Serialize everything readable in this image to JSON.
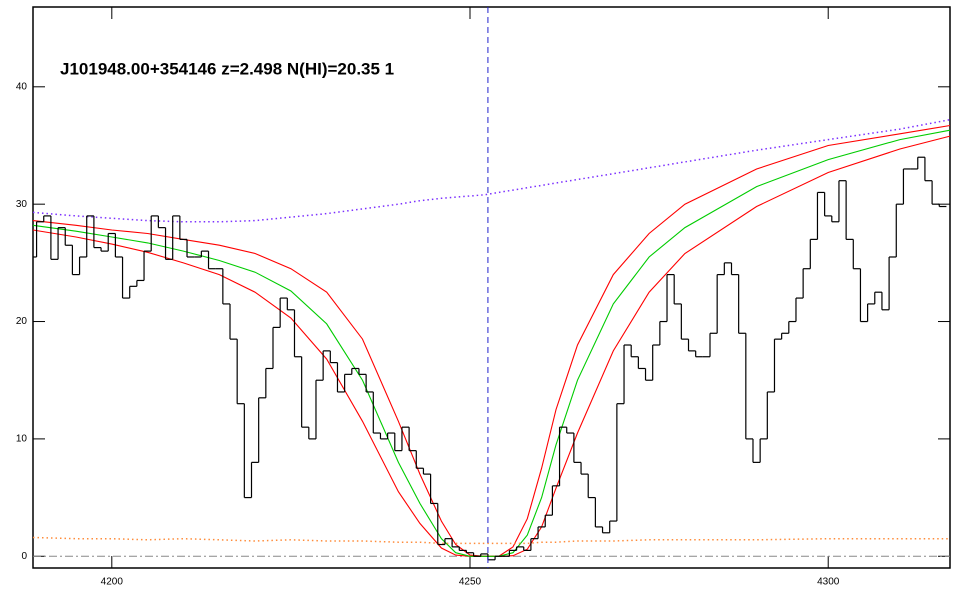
{
  "chart_data": {
    "type": "spectrum",
    "title": "J101948.00+354146 z=2.498 N(HI)=20.35 1",
    "xlim": [
      4189,
      4317
    ],
    "ylim": [
      -1,
      46.8
    ],
    "xticks": [
      4200,
      4250,
      4300
    ],
    "yticks": [
      0,
      10,
      20,
      30,
      40
    ],
    "marker_x": 4252.5,
    "hline": 0,
    "flux": {
      "color": "#000000",
      "x": [
        4189,
        4190,
        4191,
        4192,
        4193,
        4194,
        4195,
        4196,
        4197,
        4198,
        4199,
        4200,
        4201,
        4202,
        4203,
        4204,
        4205,
        4206,
        4207,
        4208,
        4209,
        4210,
        4211,
        4212,
        4213,
        4214,
        4215,
        4216,
        4217,
        4218,
        4219,
        4220,
        4221,
        4222,
        4223,
        4224,
        4225,
        4226,
        4227,
        4228,
        4229,
        4230,
        4231,
        4232,
        4233,
        4234,
        4235,
        4236,
        4237,
        4238,
        4239,
        4240,
        4241,
        4242,
        4243,
        4244,
        4245,
        4246,
        4247,
        4248,
        4249,
        4250,
        4251,
        4252,
        4253,
        4254,
        4255,
        4256,
        4257,
        4258,
        4259,
        4260,
        4261,
        4262,
        4263,
        4264,
        4265,
        4266,
        4267,
        4268,
        4269,
        4270,
        4271,
        4272,
        4273,
        4274,
        4275,
        4276,
        4277,
        4278,
        4279,
        4280,
        4281,
        4282,
        4283,
        4284,
        4285,
        4286,
        4287,
        4288,
        4289,
        4290,
        4291,
        4292,
        4293,
        4294,
        4295,
        4296,
        4297,
        4298,
        4299,
        4300,
        4301,
        4302,
        4303,
        4304,
        4305,
        4306,
        4307,
        4308,
        4309,
        4310,
        4311,
        4312,
        4313,
        4314,
        4315,
        4316
      ],
      "values": [
        25.5,
        28.5,
        29,
        25.3,
        28,
        26.5,
        24,
        25.5,
        29,
        26.3,
        26,
        27.5,
        25.5,
        22,
        23,
        23.5,
        26,
        29,
        28,
        25.3,
        29,
        27,
        25.5,
        25.5,
        26,
        24.5,
        24.5,
        21.5,
        18.5,
        13,
        5,
        8,
        13.5,
        16,
        19.5,
        22,
        21,
        17,
        11,
        10,
        15,
        17.5,
        16.5,
        14,
        15.5,
        16,
        15.5,
        14,
        10.5,
        10,
        10.5,
        9,
        11,
        9,
        7.5,
        7,
        4.5,
        1,
        1.5,
        0.8,
        0.5,
        0.3,
        0,
        0.2,
        -0.3,
        0,
        0,
        0.5,
        0.8,
        0.5,
        1.5,
        2.5,
        3.5,
        6,
        11,
        10.5,
        8,
        7,
        5,
        2.5,
        2,
        3,
        13,
        18,
        17,
        16,
        15,
        18,
        20,
        24,
        21.5,
        18.5,
        17.5,
        17,
        17,
        19,
        24,
        25,
        24,
        19,
        10,
        8,
        10,
        14,
        18.5,
        19,
        20,
        22,
        24.5,
        27,
        31,
        29,
        28.5,
        32,
        27,
        24.5,
        20,
        21.5,
        22.5,
        21,
        25.5,
        30,
        33,
        33,
        34,
        32,
        30,
        29.8
      ]
    },
    "model_x": [
      4189,
      4195,
      4200,
      4205,
      4210,
      4215,
      4220,
      4225,
      4230,
      4235,
      4240,
      4243,
      4246,
      4248,
      4250,
      4252,
      4254,
      4256,
      4258,
      4260,
      4262,
      4265,
      4270,
      4275,
      4280,
      4290,
      4300,
      4310,
      4317
    ],
    "series": [
      {
        "color": "#ff0000",
        "style": "solid",
        "values": [
          28.6,
          28.2,
          27.8,
          27.5,
          27,
          26.5,
          25.8,
          24.5,
          22.5,
          18.5,
          11.5,
          7,
          3,
          1,
          0.1,
          0,
          0,
          0.8,
          3.2,
          7.5,
          12.5,
          18,
          24,
          27.5,
          30,
          33,
          35,
          36,
          36.7
        ]
      },
      {
        "color": "#ff0000",
        "style": "solid",
        "values": [
          27.8,
          27.2,
          26.6,
          25.9,
          25,
          24,
          22.5,
          20.3,
          16.8,
          11.5,
          5.5,
          2.8,
          0.7,
          0.1,
          0,
          0,
          0,
          0.05,
          0.6,
          2.5,
          5.8,
          10.5,
          17.5,
          22.5,
          25.8,
          29.8,
          32.7,
          34.7,
          35.8
        ]
      },
      {
        "color": "#00cc00",
        "style": "solid",
        "values": [
          28.2,
          27.7,
          27.2,
          26.7,
          26,
          25.2,
          24.2,
          22.6,
          19.8,
          15,
          8,
          4.5,
          1.5,
          0.3,
          0,
          0,
          0,
          0.3,
          1.8,
          5,
          9.5,
          15,
          21.5,
          25.5,
          28,
          31.5,
          33.8,
          35.5,
          36.3
        ]
      },
      {
        "color": "#7b2fff",
        "style": "dotted",
        "values": [
          29.3,
          29,
          28.8,
          28.6,
          28.5,
          28.5,
          28.6,
          28.9,
          29.2,
          29.6,
          30,
          30.3,
          30.5,
          30.6,
          30.7,
          30.8,
          31,
          31.2,
          31.4,
          31.6,
          31.8,
          32.1,
          32.6,
          33.1,
          33.6,
          34.6,
          35.5,
          36.4,
          37.2
        ]
      },
      {
        "color": "#ff8c3a",
        "style": "dotted",
        "values": [
          1.6,
          1.5,
          1.5,
          1.4,
          1.5,
          1.4,
          1.3,
          1.4,
          1.3,
          1.3,
          1.2,
          1.2,
          1.1,
          1.1,
          1.1,
          1.1,
          1.1,
          1.1,
          1.1,
          1.2,
          1.2,
          1.3,
          1.3,
          1.4,
          1.4,
          1.4,
          1.5,
          1.5,
          1.5
        ]
      }
    ]
  }
}
